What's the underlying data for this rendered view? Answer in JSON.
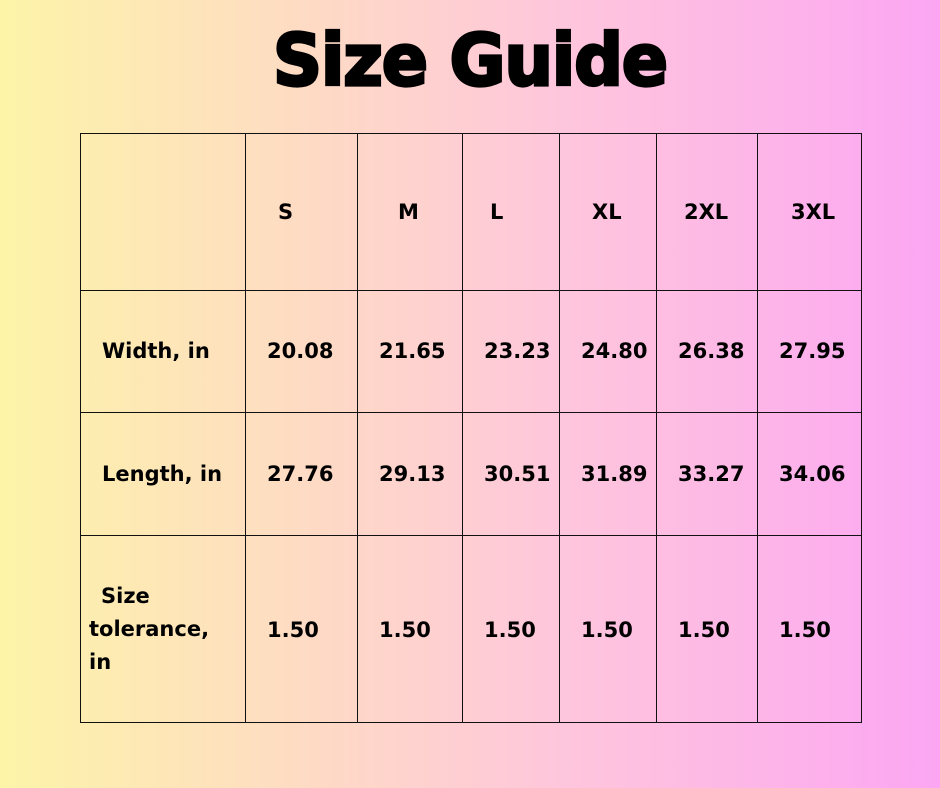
{
  "title": "Size Guide",
  "table": {
    "headers": [
      "S",
      "M",
      "L",
      "XL",
      "2XL",
      "3XL"
    ],
    "rows": [
      {
        "label": "Width, in",
        "values": [
          "20.08",
          "21.65",
          "23.23",
          "24.80",
          "26.38",
          "27.95"
        ]
      },
      {
        "label": "Length, in",
        "values": [
          "27.76",
          "29.13",
          "30.51",
          "31.89",
          "33.27",
          "34.06"
        ]
      },
      {
        "label_lines": [
          "Size",
          "tolerance,",
          "in"
        ],
        "values": [
          "1.50",
          "1.50",
          "1.50",
          "1.50",
          "1.50",
          "1.50"
        ]
      }
    ]
  }
}
